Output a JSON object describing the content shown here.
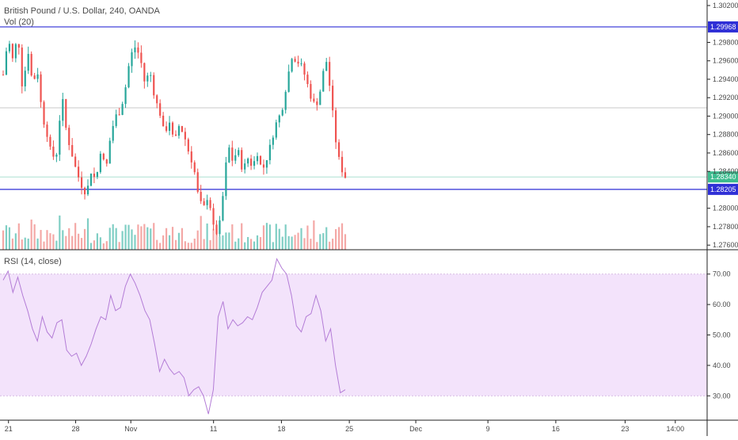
{
  "chart_data": [
    {
      "type": "candlestick",
      "title": "British Pound / U.S. Dollar, 240, OANDA",
      "indicator_label": "Vol (20)",
      "y_ticks": [
        "1.30200",
        "1.29800",
        "1.29600",
        "1.29400",
        "1.29200",
        "1.29000",
        "1.28800",
        "1.28600",
        "1.28400",
        "1.28000",
        "1.27800",
        "1.27600"
      ],
      "ylim": [
        1.2755,
        1.3026
      ],
      "horizontal_lines": [
        {
          "value": 1.29968,
          "label": "1.29968",
          "color": "#2f2fd6"
        },
        {
          "value": 1.28205,
          "label": "1.28205",
          "color": "#2f2fd6"
        },
        {
          "value": 1.2909,
          "label": "",
          "color": "#b9b9b9"
        }
      ],
      "last_price": {
        "value": 1.2834,
        "label": "1.28340",
        "color": "#3dbb8e"
      },
      "candle_colors": {
        "up": "#26a69a",
        "down": "#ef5350",
        "volume_up": "#7fcec4",
        "volume_down": "#f4a8a6"
      },
      "close_path": [
        1.2945,
        1.2985,
        1.296,
        1.299,
        1.2925,
        1.2975,
        1.2935,
        1.295,
        1.29,
        1.288,
        1.2855,
        1.286,
        1.2925,
        1.288,
        1.286,
        1.284,
        1.2825,
        1.2815,
        1.284,
        1.283,
        1.2865,
        1.284,
        1.288,
        1.29,
        1.2905,
        1.293,
        1.2965,
        1.2975,
        1.2965,
        1.2935,
        1.295,
        1.292,
        1.2905,
        1.288,
        1.2895,
        1.287,
        1.289,
        1.288,
        1.286,
        1.2845,
        1.281,
        1.28,
        1.2815,
        1.278,
        1.277,
        1.2815,
        1.287,
        1.285,
        1.2865,
        1.284,
        1.2855,
        1.2845,
        1.286,
        1.284,
        1.2855,
        1.2875,
        1.2895,
        1.2905,
        1.2935,
        1.2965,
        1.296,
        1.2955,
        1.294,
        1.292,
        1.291,
        1.293,
        1.2965,
        1.2925,
        1.2875,
        1.2845,
        1.2834
      ]
    },
    {
      "type": "line",
      "title": "RSI (14, close)",
      "y_ticks": [
        "70.00",
        "60.00",
        "50.00",
        "40.00",
        "30.00"
      ],
      "ylim": [
        22,
        78
      ],
      "band": {
        "upper": 70,
        "lower": 30,
        "fill": "#f3e3fb",
        "line_color": "#c9a6da"
      },
      "line_color": "#b37cd6",
      "values": [
        68,
        71,
        64,
        69,
        63,
        58,
        52,
        48,
        56,
        51,
        49,
        54,
        55,
        45,
        43,
        44,
        40,
        43,
        47,
        52,
        56,
        55,
        63,
        58,
        59,
        66,
        70,
        67,
        63,
        58,
        55,
        47,
        38,
        42,
        39,
        37,
        38,
        36,
        30,
        32,
        33,
        30,
        24,
        32,
        56,
        61,
        52,
        55,
        53,
        54,
        56,
        55,
        59,
        64,
        66,
        68,
        75,
        72,
        70,
        63,
        53,
        51,
        56,
        57,
        63,
        58,
        48,
        52,
        40,
        31,
        32
      ],
      "x_ticks": [
        {
          "label": "21",
          "pos": 0.012
        },
        {
          "label": "28",
          "pos": 0.107
        },
        {
          "label": "Nov",
          "pos": 0.185
        },
        {
          "label": "11",
          "pos": 0.302
        },
        {
          "label": "18",
          "pos": 0.398
        },
        {
          "label": "25",
          "pos": 0.494
        },
        {
          "label": "Dec",
          "pos": 0.588
        },
        {
          "label": "9",
          "pos": 0.69
        },
        {
          "label": "16",
          "pos": 0.786
        },
        {
          "label": "23",
          "pos": 0.884
        },
        {
          "label": "14:00",
          "pos": 0.955
        }
      ]
    }
  ]
}
